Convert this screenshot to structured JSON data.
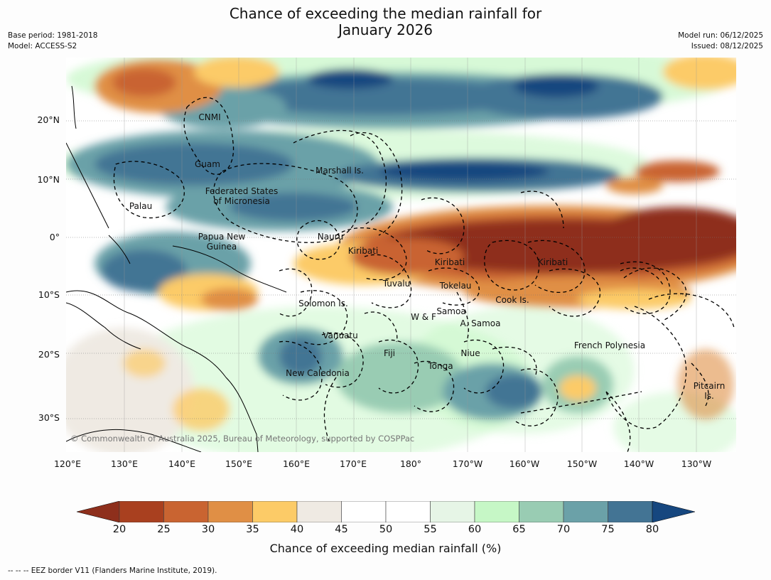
{
  "title": {
    "line1": "Chance of exceeding the median rainfall for",
    "line2": "January 2026"
  },
  "meta_left": {
    "base_period": "Base period: 1981-2018",
    "model": "Model: ACCESS-S2"
  },
  "meta_right": {
    "model_run": "Model run: 06/12/2025",
    "issued": "Issued: 08/12/2025"
  },
  "lat_labels": [
    "20°N",
    "10°N",
    "0°",
    "10°S",
    "20°S",
    "30°S"
  ],
  "lon_labels": [
    "120°E",
    "130°E",
    "140°E",
    "150°E",
    "160°E",
    "170°E",
    "180°",
    "170°W",
    "160°W",
    "150°W",
    "140°W",
    "130°W"
  ],
  "places": {
    "cnmi": "CNMI",
    "guam": "Guam",
    "marshall": "Marshall Is.",
    "fsm": "Federated States\nof Micronesia",
    "palau": "Palau",
    "png": "Papua New\nGuinea",
    "nauru": "Nauru",
    "kiribati1": "Kiribati",
    "kiribati2": "Kiribati",
    "kiribati3": "Kiribati",
    "tuvalu": "Tuvalu",
    "tokelau": "Tokelau",
    "cook": "Cook Is.",
    "solomon": "Solomon Is.",
    "samoa": "Samoa",
    "wf": "W & F",
    "asamoa": "A. Samoa",
    "vanuatu": "Vanuatu",
    "fiji": "Fiji",
    "niue": "Niue",
    "frenchpoly": "French Polynesia",
    "tonga": "Tonga",
    "newcal": "New Caledonia",
    "pitcairn": "Pitcairn\nIs."
  },
  "copyright": "© Commonwealth of Australia 2025, Bureau of Meteorology, supported by COSPPac",
  "colorbar": {
    "ticks": [
      "20",
      "25",
      "30",
      "35",
      "40",
      "45",
      "50",
      "55",
      "60",
      "65",
      "70",
      "75",
      "80"
    ],
    "colors": {
      "under": "#8e2f1c",
      "b20_25": "#a9401f",
      "b25_30": "#c96431",
      "b30_35": "#e08f45",
      "b35_40": "#fccb67",
      "b40_45": "#efeae3",
      "b45_50": "#ffffff",
      "b50_55": "#ffffff",
      "b55_60": "#e6f5e6",
      "b60_65": "#c6f7c6",
      "b65_70": "#99ccb3",
      "b70_75": "#6ba1a8",
      "b75_80": "#437494",
      "over": "#16477f"
    },
    "label": "Chance of exceeding median rainfall (%)"
  },
  "legend_note": "--  --  -- EEZ border V11 (Flanders Marine Institute, 2019)."
}
